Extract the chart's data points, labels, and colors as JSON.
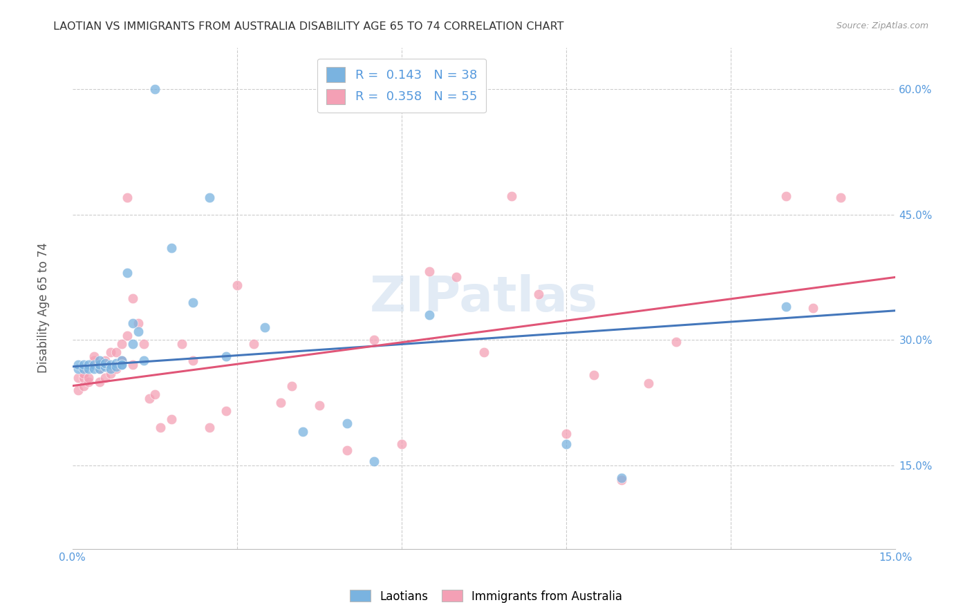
{
  "title": "LAOTIAN VS IMMIGRANTS FROM AUSTRALIA DISABILITY AGE 65 TO 74 CORRELATION CHART",
  "source": "Source: ZipAtlas.com",
  "ylabel": "Disability Age 65 to 74",
  "xlim": [
    0.0,
    0.15
  ],
  "ylim": [
    0.05,
    0.65
  ],
  "blue_R": 0.143,
  "blue_N": 38,
  "pink_R": 0.358,
  "pink_N": 55,
  "blue_color": "#7ab3e0",
  "pink_color": "#f4a0b5",
  "blue_line_color": "#4477bb",
  "pink_line_color": "#e05577",
  "background_color": "#ffffff",
  "grid_color": "#cccccc",
  "title_color": "#333333",
  "tick_label_color": "#5599dd",
  "watermark": "ZIPatlas",
  "blue_x": [
    0.001,
    0.001,
    0.002,
    0.002,
    0.003,
    0.003,
    0.004,
    0.004,
    0.005,
    0.005,
    0.005,
    0.006,
    0.006,
    0.007,
    0.007,
    0.008,
    0.008,
    0.009,
    0.009,
    0.009,
    0.01,
    0.011,
    0.011,
    0.012,
    0.013,
    0.015,
    0.018,
    0.022,
    0.025,
    0.028,
    0.035,
    0.042,
    0.05,
    0.055,
    0.065,
    0.09,
    0.1,
    0.13
  ],
  "blue_y": [
    0.265,
    0.27,
    0.265,
    0.27,
    0.27,
    0.265,
    0.27,
    0.265,
    0.265,
    0.27,
    0.275,
    0.268,
    0.272,
    0.27,
    0.265,
    0.272,
    0.268,
    0.275,
    0.27,
    0.27,
    0.38,
    0.295,
    0.32,
    0.31,
    0.275,
    0.6,
    0.41,
    0.345,
    0.47,
    0.28,
    0.315,
    0.19,
    0.2,
    0.155,
    0.33,
    0.175,
    0.135,
    0.34
  ],
  "pink_x": [
    0.001,
    0.001,
    0.002,
    0.002,
    0.002,
    0.003,
    0.003,
    0.004,
    0.004,
    0.005,
    0.005,
    0.005,
    0.006,
    0.006,
    0.007,
    0.007,
    0.008,
    0.008,
    0.009,
    0.009,
    0.01,
    0.01,
    0.011,
    0.011,
    0.012,
    0.013,
    0.014,
    0.015,
    0.016,
    0.018,
    0.02,
    0.022,
    0.025,
    0.028,
    0.03,
    0.033,
    0.038,
    0.04,
    0.045,
    0.05,
    0.055,
    0.06,
    0.065,
    0.07,
    0.075,
    0.08,
    0.085,
    0.09,
    0.095,
    0.1,
    0.105,
    0.11,
    0.13,
    0.135,
    0.14
  ],
  "pink_y": [
    0.24,
    0.255,
    0.245,
    0.255,
    0.26,
    0.25,
    0.255,
    0.275,
    0.28,
    0.25,
    0.265,
    0.27,
    0.255,
    0.275,
    0.285,
    0.26,
    0.265,
    0.285,
    0.275,
    0.295,
    0.47,
    0.305,
    0.35,
    0.27,
    0.32,
    0.295,
    0.23,
    0.235,
    0.195,
    0.205,
    0.295,
    0.275,
    0.195,
    0.215,
    0.365,
    0.295,
    0.225,
    0.245,
    0.222,
    0.168,
    0.3,
    0.175,
    0.382,
    0.375,
    0.285,
    0.472,
    0.355,
    0.188,
    0.258,
    0.132,
    0.248,
    0.298,
    0.472,
    0.338,
    0.47
  ],
  "blue_trend": [
    0.268,
    0.335
  ],
  "pink_trend": [
    0.245,
    0.375
  ],
  "ytick_positions": [
    0.15,
    0.3,
    0.45,
    0.6
  ],
  "ytick_labels": [
    "15.0%",
    "30.0%",
    "45.0%",
    "60.0%"
  ],
  "xtick_labels_positions": [
    0.0,
    0.15
  ],
  "xtick_labels": [
    "0.0%",
    "15.0%"
  ]
}
